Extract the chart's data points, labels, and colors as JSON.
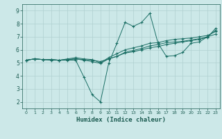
{
  "xlabel": "Humidex (Indice chaleur)",
  "xlim": [
    -0.5,
    23.5
  ],
  "ylim": [
    1.5,
    9.5
  ],
  "xticks": [
    0,
    1,
    2,
    3,
    4,
    5,
    6,
    7,
    8,
    9,
    10,
    11,
    12,
    13,
    14,
    15,
    16,
    17,
    18,
    19,
    20,
    21,
    22,
    23
  ],
  "yticks": [
    2,
    3,
    4,
    5,
    6,
    7,
    8,
    9
  ],
  "bg_color": "#cce8e8",
  "grid_color": "#b0d0d0",
  "line_color": "#1a6e64",
  "lines": [
    {
      "x": [
        0,
        1,
        2,
        3,
        4,
        5,
        6,
        7,
        8,
        9,
        10,
        11,
        12,
        13,
        14,
        15,
        16,
        17,
        18,
        19,
        20,
        21,
        22,
        23
      ],
      "y": [
        5.2,
        5.3,
        5.25,
        5.25,
        5.2,
        5.2,
        5.2,
        3.9,
        2.55,
        2.0,
        4.95,
        6.5,
        8.1,
        7.8,
        8.1,
        8.8,
        6.5,
        5.5,
        5.55,
        5.8,
        6.5,
        6.6,
        7.0,
        7.5
      ]
    },
    {
      "x": [
        0,
        1,
        2,
        3,
        4,
        5,
        6,
        7,
        8,
        9,
        10,
        11,
        12,
        13,
        14,
        15,
        16,
        17,
        18,
        19,
        20,
        21,
        22,
        23
      ],
      "y": [
        5.2,
        5.3,
        5.25,
        5.25,
        5.2,
        5.3,
        5.4,
        5.3,
        5.25,
        5.0,
        5.4,
        5.7,
        6.0,
        6.15,
        6.3,
        6.5,
        6.55,
        6.7,
        6.8,
        6.85,
        6.9,
        7.0,
        7.1,
        7.4
      ]
    },
    {
      "x": [
        0,
        1,
        2,
        3,
        4,
        5,
        6,
        7,
        8,
        9,
        10,
        11,
        12,
        13,
        14,
        15,
        16,
        17,
        18,
        19,
        20,
        21,
        22,
        23
      ],
      "y": [
        5.2,
        5.3,
        5.25,
        5.2,
        5.2,
        5.25,
        5.3,
        5.2,
        5.1,
        4.95,
        5.3,
        5.5,
        5.8,
        5.95,
        6.1,
        6.3,
        6.4,
        6.55,
        6.6,
        6.65,
        6.75,
        6.85,
        7.0,
        7.2
      ]
    },
    {
      "x": [
        0,
        1,
        2,
        3,
        4,
        5,
        6,
        7,
        8,
        9,
        10,
        11,
        12,
        13,
        14,
        15,
        16,
        17,
        18,
        19,
        20,
        21,
        22,
        23
      ],
      "y": [
        5.2,
        5.3,
        5.25,
        5.25,
        5.2,
        5.25,
        5.3,
        5.25,
        5.2,
        5.1,
        5.3,
        5.5,
        5.75,
        5.85,
        6.0,
        6.15,
        6.25,
        6.4,
        6.5,
        6.6,
        6.7,
        6.8,
        6.95,
        7.65
      ]
    }
  ],
  "tick_color": "#1a5a50",
  "xlabel_fontsize": 6.5,
  "tick_fontsize_x": 4.5,
  "tick_fontsize_y": 5.5
}
